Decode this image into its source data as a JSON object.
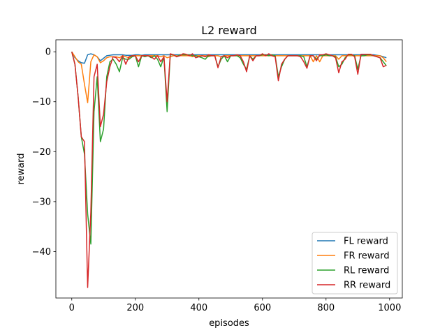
{
  "chart_data": {
    "type": "line",
    "title": "L2 reward",
    "xlabel": "episodes",
    "ylabel": "reward",
    "xlim": [
      -50,
      1040
    ],
    "ylim": [
      -49.3,
      2.4
    ],
    "xticks": [
      0,
      200,
      400,
      600,
      800,
      1000
    ],
    "yticks": [
      0,
      -10,
      -20,
      -30,
      -40
    ],
    "xtick_labels": [
      "0",
      "200",
      "400",
      "600",
      "800",
      "1000"
    ],
    "ytick_labels": [
      "0",
      "−10",
      "−20",
      "−30",
      "−40"
    ],
    "grid": false,
    "legend_position": "lower-right",
    "x": [
      0,
      10,
      20,
      30,
      40,
      50,
      60,
      70,
      80,
      90,
      100,
      110,
      120,
      130,
      140,
      150,
      160,
      170,
      180,
      190,
      200,
      210,
      220,
      230,
      240,
      250,
      260,
      270,
      280,
      290,
      300,
      310,
      320,
      330,
      340,
      350,
      360,
      370,
      380,
      390,
      400,
      410,
      420,
      430,
      440,
      450,
      460,
      470,
      480,
      490,
      500,
      510,
      520,
      530,
      540,
      550,
      560,
      570,
      580,
      590,
      600,
      610,
      620,
      630,
      640,
      650,
      660,
      670,
      680,
      690,
      700,
      710,
      720,
      730,
      740,
      750,
      760,
      770,
      780,
      790,
      800,
      810,
      820,
      830,
      840,
      850,
      860,
      870,
      880,
      890,
      900,
      910,
      920,
      930,
      940,
      950,
      960,
      970,
      980,
      990
    ],
    "series": [
      {
        "name": "FL reward",
        "color": "#1f77b4",
        "values": [
          0,
          -1.2,
          -1.8,
          -2.2,
          -2.3,
          -0.6,
          -0.4,
          -0.6,
          -1.0,
          -1.8,
          -1.3,
          -0.8,
          -0.7,
          -0.6,
          -0.6,
          -0.6,
          -0.6,
          -0.7,
          -0.7,
          -0.7,
          -0.6,
          -0.6,
          -0.7,
          -0.6,
          -0.6,
          -0.6,
          -0.6,
          -0.6,
          -0.6,
          -0.6,
          -0.6,
          -0.6,
          -0.6,
          -0.6,
          -0.6,
          -0.6,
          -0.6,
          -0.6,
          -0.6,
          -0.6,
          -0.6,
          -0.6,
          -0.6,
          -0.6,
          -0.6,
          -0.6,
          -0.6,
          -0.6,
          -0.6,
          -0.6,
          -0.6,
          -0.6,
          -0.6,
          -0.6,
          -0.6,
          -0.6,
          -0.6,
          -0.6,
          -0.6,
          -0.6,
          -0.6,
          -0.6,
          -0.6,
          -0.6,
          -0.6,
          -0.6,
          -0.6,
          -0.6,
          -0.6,
          -0.6,
          -0.6,
          -0.6,
          -0.6,
          -0.6,
          -0.6,
          -0.6,
          -0.6,
          -0.6,
          -0.6,
          -0.6,
          -0.6,
          -0.6,
          -0.6,
          -0.6,
          -0.6,
          -0.6,
          -0.6,
          -0.6,
          -0.6,
          -0.6,
          -0.6,
          -0.6,
          -0.6,
          -0.6,
          -0.6,
          -0.6,
          -0.7,
          -0.8,
          -1.0,
          -1.2
        ]
      },
      {
        "name": "FR reward",
        "color": "#ff7f0e",
        "values": [
          0,
          -1.0,
          -2.0,
          -2.5,
          -6.5,
          -10.2,
          -2.0,
          -0.6,
          -1.0,
          -2.2,
          -1.8,
          -1.2,
          -1.0,
          -1.0,
          -1.0,
          -1.2,
          -0.8,
          -1.0,
          -1.2,
          -0.8,
          -0.8,
          -0.8,
          -0.8,
          -0.8,
          -0.8,
          -0.8,
          -0.8,
          -0.8,
          -1.0,
          -0.8,
          -1.2,
          -1.0,
          -0.8,
          -0.8,
          -0.8,
          -0.8,
          -0.8,
          -0.8,
          -1.0,
          -0.8,
          -0.8,
          -0.8,
          -0.8,
          -1.0,
          -0.8,
          -0.8,
          -0.8,
          -1.0,
          -0.8,
          -0.8,
          -0.8,
          -0.8,
          -0.8,
          -0.8,
          -0.8,
          -0.8,
          -0.8,
          -0.8,
          -0.8,
          -0.8,
          -0.8,
          -0.8,
          -0.8,
          -0.8,
          -0.8,
          -0.8,
          -0.8,
          -0.8,
          -0.8,
          -0.8,
          -0.8,
          -0.8,
          -0.8,
          -0.8,
          -0.8,
          -0.8,
          -2.0,
          -0.8,
          -2.0,
          -0.8,
          -0.8,
          -0.8,
          -0.8,
          -0.8,
          -1.5,
          -0.8,
          -0.8,
          -0.8,
          -0.8,
          -0.8,
          -0.8,
          -0.8,
          -0.8,
          -0.8,
          -0.8,
          -0.8,
          -0.8,
          -0.8,
          -1.2,
          -2.0
        ]
      },
      {
        "name": "RL reward",
        "color": "#2ca02c",
        "values": [
          0,
          -2.5,
          -9.0,
          -17.0,
          -20.5,
          -32.5,
          -38.5,
          -12.0,
          -5.0,
          -18.0,
          -15.5,
          -5.0,
          -2.0,
          -1.5,
          -2.5,
          -4.0,
          -1.2,
          -1.5,
          -1.5,
          -1.0,
          -0.8,
          -3.0,
          -0.8,
          -1.0,
          -0.8,
          -1.2,
          -0.8,
          -1.5,
          -3.0,
          -1.0,
          -12.0,
          -0.6,
          -0.6,
          -1.0,
          -0.6,
          -0.6,
          -0.6,
          -0.6,
          -0.8,
          -0.8,
          -1.0,
          -1.2,
          -1.5,
          -0.8,
          -0.8,
          -0.8,
          -3.0,
          -1.5,
          -0.8,
          -2.0,
          -0.8,
          -0.8,
          -0.8,
          -1.2,
          -2.5,
          -3.5,
          -0.8,
          -1.5,
          -0.8,
          -0.8,
          -0.6,
          -0.6,
          -0.8,
          -0.6,
          -0.8,
          -5.0,
          -3.0,
          -1.5,
          -0.8,
          -0.8,
          -0.8,
          -0.8,
          -0.8,
          -1.0,
          -3.0,
          -0.8,
          -0.8,
          -1.5,
          -0.8,
          -0.8,
          -0.6,
          -0.8,
          -0.8,
          -1.0,
          -3.0,
          -2.5,
          -1.2,
          -0.6,
          -0.6,
          -0.8,
          -3.5,
          -0.8,
          -0.8,
          -0.6,
          -0.6,
          -0.8,
          -1.0,
          -1.2,
          -2.0,
          -2.8
        ]
      },
      {
        "name": "RR reward",
        "color": "#d62728",
        "values": [
          0,
          -2.5,
          -9.0,
          -17.0,
          -18.0,
          -47.2,
          -32.0,
          -5.0,
          -2.5,
          -15.0,
          -12.5,
          -6.0,
          -3.0,
          -1.0,
          -1.2,
          -2.0,
          -0.8,
          -2.5,
          -1.0,
          -0.8,
          -0.8,
          -2.0,
          -0.8,
          -0.8,
          -0.8,
          -1.0,
          -1.5,
          -0.8,
          -2.0,
          -1.0,
          -10.0,
          -0.4,
          -0.6,
          -1.0,
          -0.8,
          -0.4,
          -0.5,
          -0.8,
          -0.4,
          -1.2,
          -1.0,
          -0.8,
          -1.0,
          -0.6,
          -0.8,
          -0.8,
          -3.2,
          -1.0,
          -0.8,
          -1.2,
          -0.8,
          -0.8,
          -0.6,
          -0.8,
          -2.0,
          -4.0,
          -0.8,
          -1.8,
          -0.8,
          -0.8,
          -0.4,
          -0.8,
          -0.4,
          -0.8,
          -1.0,
          -5.8,
          -2.5,
          -1.5,
          -0.8,
          -0.8,
          -0.8,
          -0.8,
          -1.0,
          -2.0,
          -3.3,
          -0.8,
          -0.8,
          -1.8,
          -0.6,
          -0.6,
          -0.4,
          -0.6,
          -0.8,
          -1.2,
          -4.2,
          -2.0,
          -1.5,
          -0.5,
          -0.5,
          -1.0,
          -4.5,
          -0.5,
          -0.5,
          -0.5,
          -0.5,
          -0.8,
          -1.0,
          -1.2,
          -3.0,
          -2.7
        ]
      }
    ]
  }
}
